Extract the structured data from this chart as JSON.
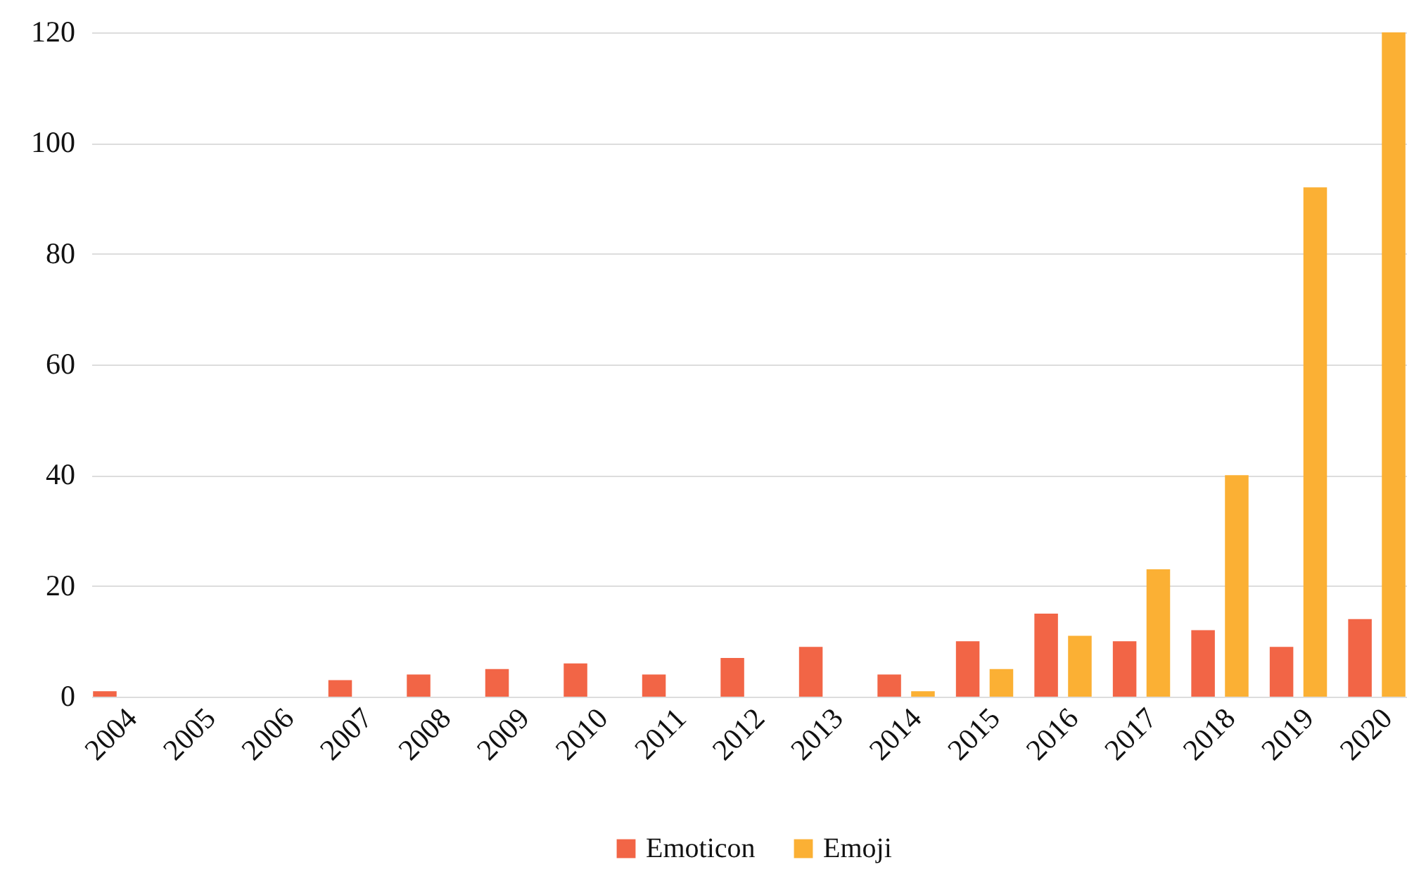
{
  "chart_data": {
    "type": "bar",
    "categories": [
      "2004",
      "2005",
      "2006",
      "2007",
      "2008",
      "2009",
      "2010",
      "2011",
      "2012",
      "2013",
      "2014",
      "2015",
      "2016",
      "2017",
      "2018",
      "2019",
      "2020"
    ],
    "series": [
      {
        "name": "Emoticon",
        "color": "#f26546",
        "values": [
          1,
          0,
          0,
          3,
          4,
          5,
          6,
          4,
          7,
          9,
          4,
          10,
          15,
          10,
          12,
          9,
          14
        ]
      },
      {
        "name": "Emoji",
        "color": "#fbb034",
        "values": [
          0,
          0,
          0,
          0,
          0,
          0,
          0,
          0,
          0,
          0,
          1,
          5,
          11,
          23,
          40,
          92,
          120
        ]
      }
    ],
    "ylim": [
      0,
      120
    ],
    "yticks": [
      0,
      20,
      40,
      60,
      80,
      100,
      120
    ],
    "grid": "y",
    "legend": "bottom"
  }
}
